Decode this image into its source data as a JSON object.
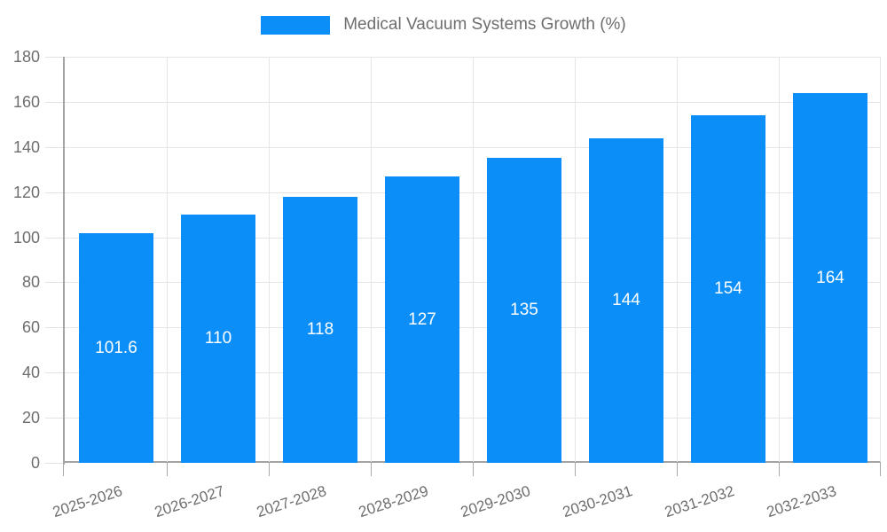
{
  "legend": {
    "items": [
      {
        "label": "Medical Vacuum Systems Growth (%)",
        "color": "#0b8ef8"
      }
    ]
  },
  "chart_data": {
    "type": "bar",
    "title": "Medical Vacuum Systems Growth (%)",
    "categories": [
      "2025-2026",
      "2026-2027",
      "2027-2028",
      "2028-2029",
      "2029-2030",
      "2030-2031",
      "2031-2032",
      "2032-2033"
    ],
    "values": [
      101.6,
      110,
      118,
      127,
      135,
      144,
      154,
      164
    ],
    "value_labels": [
      "101.6",
      "110",
      "118",
      "127",
      "135",
      "144",
      "154",
      "164"
    ],
    "xlabel": "",
    "ylabel": "",
    "ylim": [
      0,
      180
    ],
    "ytick_step": 20,
    "yticks": [
      0,
      20,
      40,
      60,
      80,
      100,
      120,
      140,
      160,
      180
    ],
    "grid": true,
    "legend_position": "top",
    "x_label_rotation_deg": -18,
    "colors": {
      "bar": "#0b8ef8",
      "grid": "#e5e5e5",
      "axis": "#a3a3a3",
      "tick_label": "#6e6e6e",
      "value_label": "#ffffff"
    }
  }
}
